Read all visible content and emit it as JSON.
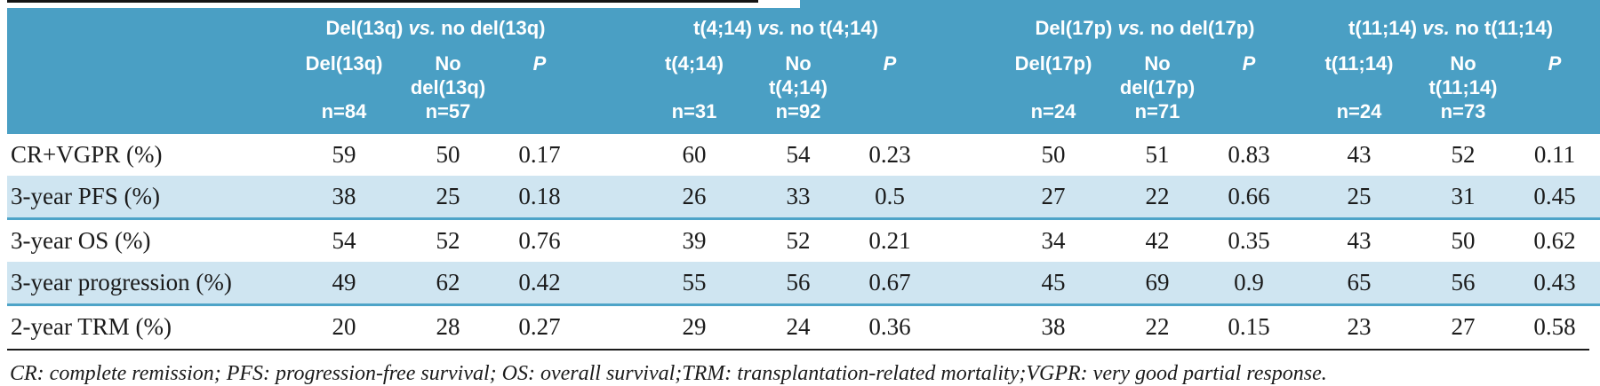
{
  "colors": {
    "header_bg": "#4a9fc4",
    "alt_row_bg": "#cfe5f1",
    "alt_row_border": "#4ea4c8",
    "rule_black": "#141414",
    "text": "#1b1b1b",
    "header_text": "#ffffff"
  },
  "table": {
    "groups": [
      {
        "title_pre": "Del(13q) ",
        "title_vs": "vs.",
        "title_post": " no del(13q)",
        "col1_line1": "Del(13q)",
        "col1_line2": "",
        "col1_n": "n=84",
        "col2_line1": "No",
        "col2_line2": "del(13q)",
        "col2_n": "n=57",
        "p_label": "P"
      },
      {
        "title_pre": "t(4;14) ",
        "title_vs": "vs.",
        "title_post": " no t(4;14)",
        "col1_line1": "t(4;14)",
        "col1_line2": "",
        "col1_n": "n=31",
        "col2_line1": "No",
        "col2_line2": "t(4;14)",
        "col2_n": "n=92",
        "p_label": "P"
      },
      {
        "title_pre": "Del(17p) ",
        "title_vs": "vs.",
        "title_post": " no del(17p)",
        "col1_line1": "Del(17p)",
        "col1_line2": "",
        "col1_n": "n=24",
        "col2_line1": "No",
        "col2_line2": "del(17p)",
        "col2_n": "n=71",
        "p_label": "P"
      },
      {
        "title_pre": "t(11;14) ",
        "title_vs": "vs.",
        "title_post": " no t(11;14)",
        "col1_line1": "t(11;14)",
        "col1_line2": "",
        "col1_n": "n=24",
        "col2_line1": "No",
        "col2_line2": "t(11;14)",
        "col2_n": "n=73",
        "p_label": "P"
      }
    ],
    "rows": [
      {
        "label": "CR+VGPR (%)",
        "values": [
          "59",
          "50",
          "0.17",
          "60",
          "54",
          "0.23",
          "50",
          "51",
          "0.83",
          "43",
          "52",
          "0.11"
        ]
      },
      {
        "label": "3-year PFS (%)",
        "values": [
          "38",
          "25",
          "0.18",
          "26",
          "33",
          "0.5",
          "27",
          "22",
          "0.66",
          "25",
          "31",
          "0.45"
        ]
      },
      {
        "label": "3-year OS (%)",
        "values": [
          "54",
          "52",
          "0.76",
          "39",
          "52",
          "0.21",
          "34",
          "42",
          "0.35",
          "43",
          "50",
          "0.62"
        ]
      },
      {
        "label": "3-year progression (%)",
        "values": [
          "49",
          "62",
          "0.42",
          "55",
          "56",
          "0.67",
          "45",
          "69",
          "0.9",
          "65",
          "56",
          "0.43"
        ]
      },
      {
        "label": "2-year TRM (%)",
        "values": [
          "20",
          "28",
          "0.27",
          "29",
          "24",
          "0.36",
          "38",
          "22",
          "0.15",
          "23",
          "27",
          "0.58"
        ]
      }
    ],
    "footnote": "CR: complete remission; PFS: progression-free survival; OS: overall survival;TRM: transplantation-related mortality;VGPR: very good partial response."
  }
}
